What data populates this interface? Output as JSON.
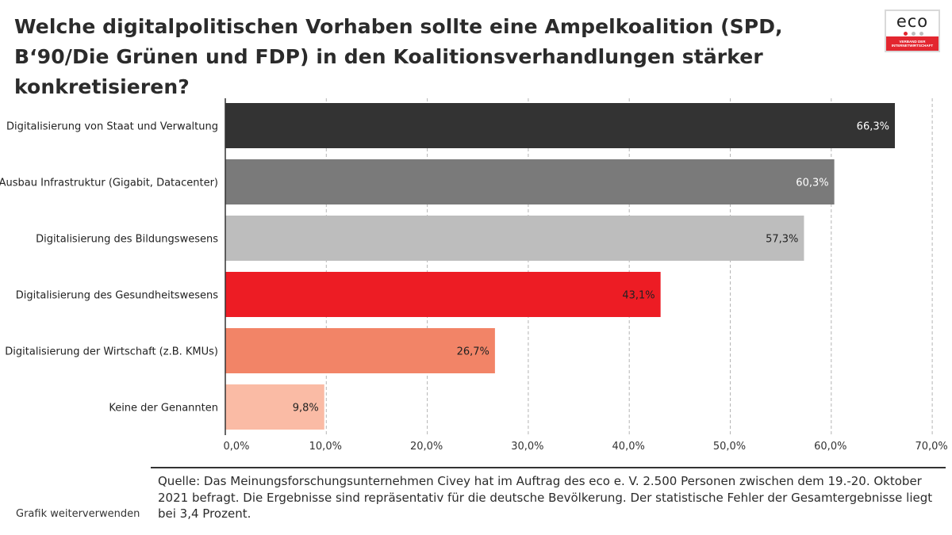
{
  "title": "Welche digitalpolitischen Vorhaben sollte eine Ampelkoalition (SPD, B‘90/Die Grünen und FDP) in den Koalitionsverhandlungen stärker konkretisieren?",
  "logo": {
    "word": "eco",
    "tagline": "VERBAND DER INTERNETWIRTSCHAFT",
    "dot_colors": [
      "#e3262f",
      "#bdbdbd",
      "#bdbdbd"
    ]
  },
  "chart_data": {
    "type": "bar",
    "orientation": "horizontal",
    "categories": [
      "Digitalisierung von Staat und Verwaltung",
      "Ausbau Infrastruktur (Gigabit, Datacenter)",
      "Digitalisierung des Bildungswesens",
      "Digitalisierung des Gesundheitswesens",
      "Digitalisierung der Wirtschaft (z.B. KMUs)",
      "Keine der Genannten"
    ],
    "values": [
      66.3,
      60.3,
      57.3,
      43.1,
      26.7,
      9.8
    ],
    "value_labels": [
      "66,3%",
      "60,3%",
      "57,3%",
      "43,1%",
      "26,7%",
      "9,8%"
    ],
    "bar_colors": [
      "#333333",
      "#7a7a7a",
      "#bdbdbd",
      "#ed1c24",
      "#f28467",
      "#fabba5"
    ],
    "label_colors": [
      "#ffffff",
      "#ffffff",
      "#222222",
      "#222222",
      "#222222",
      "#222222"
    ],
    "xlim": [
      0,
      70
    ],
    "xticks": [
      "0,0%",
      "10,0%",
      "20,0%",
      "30,0%",
      "40,0%",
      "50,0%",
      "60,0%",
      "70,0%"
    ],
    "grid": "vertical dashed"
  },
  "source": "Quelle: Das Meinungsforschungsunternehmen Civey hat im Auftrag des eco e. V. 2.500 Personen zwischen dem 19.-20. Oktober 2021 befragt. Die Ergebnisse sind repräsentativ für die deutsche Bevölkerung. Der statistische Fehler der Gesamtergebnisse liegt bei 3,4 Prozent.",
  "reuse_link": "Grafik weiterverwenden"
}
